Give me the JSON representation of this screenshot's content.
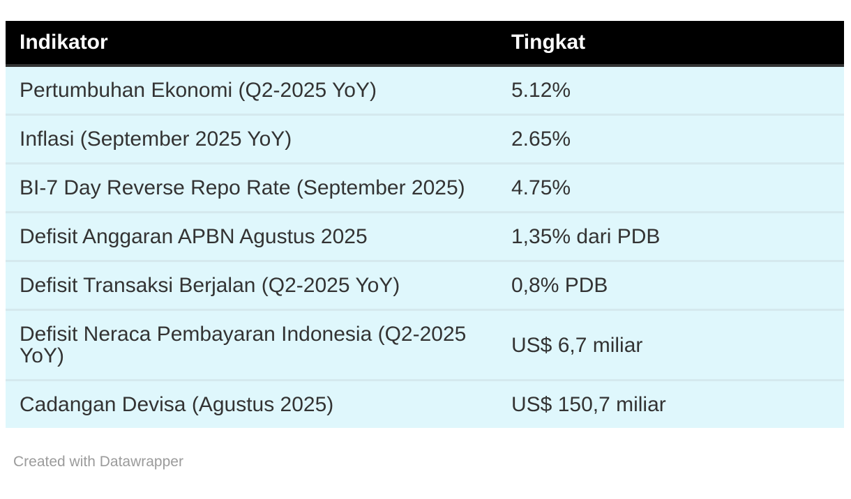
{
  "chart_data": {
    "type": "table",
    "columns": [
      "Indikator",
      "Tingkat"
    ],
    "rows": [
      [
        "Pertumbuhan Ekonomi (Q2-2025 YoY)",
        "5.12%"
      ],
      [
        "Inflasi (September 2025 YoY)",
        "2.65%"
      ],
      [
        "BI-7 Day Reverse Repo Rate (September 2025)",
        "4.75%"
      ],
      [
        "Defisit Anggaran APBN Agustus 2025",
        "1,35% dari PDB"
      ],
      [
        "Defisit Transaksi Berjalan (Q2-2025 YoY)",
        "0,8% PDB"
      ],
      [
        "Defisit Neraca Pembayaran Indonesia (Q2-2025 YoY)",
        "US$ 6,7 miliar"
      ],
      [
        "Cadangan Devisa (Agustus 2025)",
        "US$ 150,7 miliar"
      ]
    ],
    "layout_hints": {
      "header_style": "black-bar",
      "row_striping": "none",
      "grid": "horizontal-dividers-only"
    }
  },
  "footer": {
    "attribution": "Created with Datawrapper"
  },
  "colors": {
    "page_bg": "#ffffff",
    "header_bg": "#000000",
    "header_text": "#ffffff",
    "header_border": "#333333",
    "row_bg": "#dff7fc",
    "row_divider": "#d5e9ee",
    "body_text": "#333333",
    "attribution_text": "#9b9b9b"
  }
}
